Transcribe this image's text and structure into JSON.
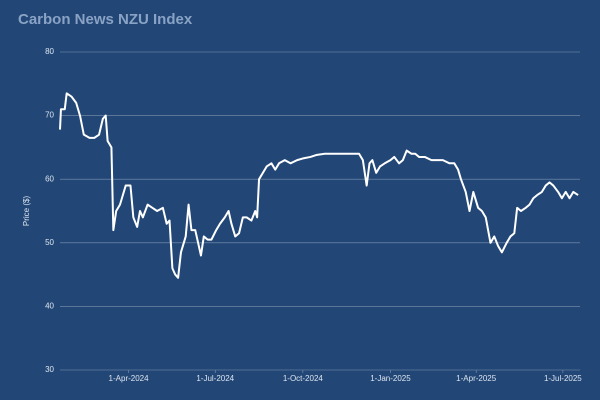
{
  "chart_data": {
    "type": "line",
    "title": "Carbon News NZU Index",
    "y_label": "Price ($)",
    "x": [
      "2024-01-20",
      "2024-01-21",
      "2024-01-23",
      "2024-01-25",
      "2024-01-27",
      "2024-02-01",
      "2024-02-06",
      "2024-02-10",
      "2024-02-14",
      "2024-02-20",
      "2024-02-25",
      "2024-03-01",
      "2024-03-05",
      "2024-03-08",
      "2024-03-10",
      "2024-03-14",
      "2024-03-16",
      "2024-03-19",
      "2024-03-23",
      "2024-03-29",
      "2024-04-03",
      "2024-04-06",
      "2024-04-10",
      "2024-04-13",
      "2024-04-16",
      "2024-04-21",
      "2024-04-26",
      "2024-05-01",
      "2024-05-07",
      "2024-05-11",
      "2024-05-14",
      "2024-05-17",
      "2024-05-20",
      "2024-05-23",
      "2024-05-26",
      "2024-05-31",
      "2024-06-03",
      "2024-06-06",
      "2024-06-10",
      "2024-06-13",
      "2024-06-16",
      "2024-06-19",
      "2024-06-23",
      "2024-06-27",
      "2024-07-02",
      "2024-07-06",
      "2024-07-11",
      "2024-07-15",
      "2024-07-18",
      "2024-07-22",
      "2024-07-26",
      "2024-07-30",
      "2024-08-03",
      "2024-08-08",
      "2024-08-12",
      "2024-08-14",
      "2024-08-16",
      "2024-08-20",
      "2024-08-24",
      "2024-08-29",
      "2024-09-02",
      "2024-09-06",
      "2024-09-12",
      "2024-09-18",
      "2024-09-25",
      "2024-10-02",
      "2024-10-09",
      "2024-10-15",
      "2024-10-24",
      "2024-11-01",
      "2024-11-10",
      "2024-11-20",
      "2024-11-29",
      "2024-12-03",
      "2024-12-07",
      "2024-12-10",
      "2024-12-13",
      "2024-12-17",
      "2024-12-21",
      "2024-12-26",
      "2025-01-01",
      "2025-01-05",
      "2025-01-10",
      "2025-01-14",
      "2025-01-18",
      "2025-01-23",
      "2025-01-27",
      "2025-01-31",
      "2025-02-06",
      "2025-02-13",
      "2025-02-19",
      "2025-02-25",
      "2025-03-04",
      "2025-03-09",
      "2025-03-13",
      "2025-03-16",
      "2025-03-21",
      "2025-03-25",
      "2025-03-29",
      "2025-04-03",
      "2025-04-07",
      "2025-04-11",
      "2025-04-16",
      "2025-04-20",
      "2025-04-24",
      "2025-04-28",
      "2025-05-03",
      "2025-05-07",
      "2025-05-11",
      "2025-05-14",
      "2025-05-18",
      "2025-05-23",
      "2025-05-27",
      "2025-05-31",
      "2025-06-04",
      "2025-06-09",
      "2025-06-13",
      "2025-06-17",
      "2025-06-21",
      "2025-06-26",
      "2025-06-30",
      "2025-07-04",
      "2025-07-08",
      "2025-07-12",
      "2025-07-17"
    ],
    "series": [
      {
        "name": "NZU",
        "color": "#ffffff",
        "values": [
          67.8,
          71,
          71,
          71,
          73.5,
          73,
          72,
          70,
          67,
          66.5,
          66.5,
          67,
          69.5,
          70,
          66,
          65,
          52,
          55,
          56,
          59,
          59,
          54,
          52.5,
          55,
          54,
          56,
          55.5,
          55,
          55.5,
          53,
          53.5,
          46,
          45,
          44.5,
          48.5,
          51,
          56,
          52,
          52,
          50,
          48,
          51,
          50.5,
          50.5,
          52,
          53,
          54,
          55,
          53,
          51,
          51.5,
          54,
          54,
          53.5,
          55,
          54,
          60,
          61,
          62,
          62.5,
          61.5,
          62.5,
          63,
          62.5,
          63,
          63.3,
          63.5,
          63.8,
          64,
          64,
          64,
          64,
          64,
          63,
          59,
          62.5,
          63,
          61,
          62,
          62.5,
          63,
          63.5,
          62.5,
          63,
          64.5,
          64,
          64,
          63.5,
          63.5,
          63,
          63,
          63,
          62.5,
          62.5,
          61.5,
          60,
          58,
          55,
          58,
          55.5,
          55,
          54,
          50,
          51,
          49.5,
          48.5,
          50,
          51,
          51.5,
          55.5,
          55,
          55.5,
          56,
          57,
          57.5,
          58,
          59,
          59.5,
          59,
          58,
          57,
          58,
          57,
          58,
          57.5
        ]
      }
    ],
    "xlim": [
      "2024-01-20",
      "2025-07-19"
    ],
    "xticks": [
      {
        "value": "2024-04-01",
        "label": "1-Apr-2024"
      },
      {
        "value": "2024-07-01",
        "label": "1-Jul-2024"
      },
      {
        "value": "2024-10-01",
        "label": "1-Oct-2024"
      },
      {
        "value": "2025-01-01",
        "label": "1-Jan-2025"
      },
      {
        "value": "2025-04-01",
        "label": "1-Apr-2025"
      },
      {
        "value": "2025-07-01",
        "label": "1-Jul-2025"
      }
    ],
    "ylim": [
      30,
      80
    ],
    "yticks": [
      30,
      40,
      50,
      60,
      70,
      80
    ],
    "grid": true
  }
}
